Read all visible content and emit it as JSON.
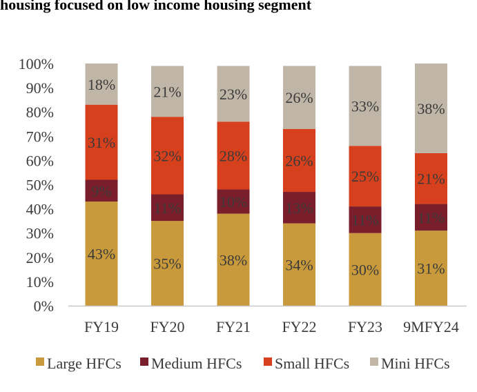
{
  "title": "housing focused on low income housing segment",
  "chart_data": {
    "type": "bar",
    "stacked": true,
    "percent": true,
    "categories": [
      "FY19",
      "FY20",
      "FY21",
      "FY22",
      "FY23",
      "9MFY24"
    ],
    "series": [
      {
        "name": "Large HFCs",
        "color": "#C99A3B",
        "values": [
          43,
          35,
          38,
          34,
          30,
          31
        ]
      },
      {
        "name": "Medium HFCs",
        "color": "#7B1E2B",
        "values": [
          9,
          11,
          10,
          13,
          11,
          11
        ]
      },
      {
        "name": "Small HFCs",
        "color": "#D6401C",
        "values": [
          31,
          32,
          28,
          26,
          25,
          21
        ]
      },
      {
        "name": "Mini HFCs",
        "color": "#BFB6A8",
        "values": [
          18,
          21,
          23,
          26,
          33,
          38
        ]
      }
    ],
    "data_labels": [
      [
        "43%",
        "35%",
        "38%",
        "34%",
        "30%",
        "31%"
      ],
      [
        "9%",
        "11%",
        "10%",
        "13%",
        "11%",
        "11%"
      ],
      [
        "31%",
        "32%",
        "28%",
        "26%",
        "25%",
        "21%"
      ],
      [
        "18%",
        "21%",
        "23%",
        "26%",
        "33%",
        "38%"
      ]
    ],
    "y_ticks": [
      "0%",
      "10%",
      "20%",
      "30%",
      "40%",
      "50%",
      "60%",
      "70%",
      "80%",
      "90%",
      "100%"
    ],
    "ylim": [
      0,
      100
    ],
    "grid": false,
    "legend_position": "bottom"
  }
}
